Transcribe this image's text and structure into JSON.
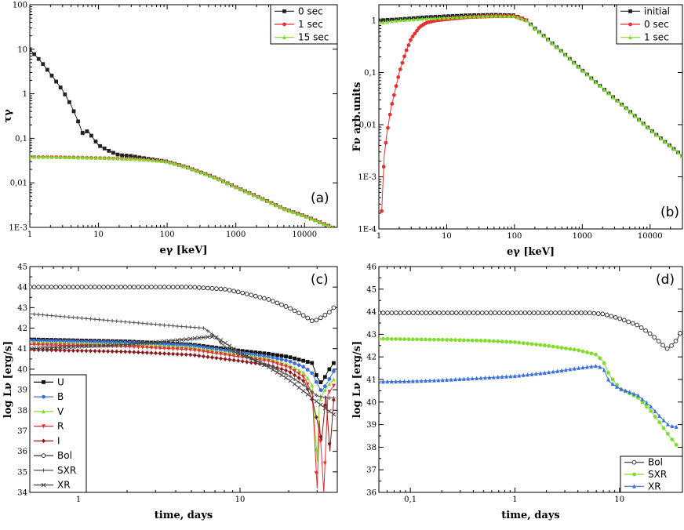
{
  "chart_data": [
    {
      "type": "line",
      "panel": "(a)",
      "xlabel": "eγ [keV]",
      "ylabel": "τγ",
      "xscale": "log",
      "yscale": "log",
      "xlim": [
        1,
        30000
      ],
      "ylim": [
        0.001,
        100
      ],
      "xticks": [
        "1",
        "10",
        "100",
        "1000",
        "10000"
      ],
      "yticks": [
        "1E-3",
        "0,01",
        "0,1",
        "1",
        "10",
        "100"
      ],
      "legend_position": "top-right",
      "series": [
        {
          "name": "0 sec",
          "color": "#222222",
          "marker": "square",
          "x": [
            1,
            1.5,
            2,
            3,
            4,
            5,
            6,
            7,
            8,
            10,
            15,
            20,
            30,
            50,
            100,
            200,
            500,
            1000,
            2000,
            5000,
            10000,
            30000
          ],
          "y": [
            10,
            5,
            2.8,
            1.2,
            0.55,
            0.25,
            0.12,
            0.15,
            0.11,
            0.07,
            0.05,
            0.042,
            0.04,
            0.035,
            0.03,
            0.022,
            0.013,
            0.008,
            0.005,
            0.0026,
            0.0018,
            0.0009
          ]
        },
        {
          "name": "1 sec",
          "color": "#e63030",
          "marker": "circle",
          "x": [
            1,
            2,
            5,
            10,
            20,
            50,
            100,
            200,
            500,
            1000,
            2000,
            5000,
            10000,
            30000
          ],
          "y": [
            0.038,
            0.038,
            0.037,
            0.036,
            0.035,
            0.033,
            0.03,
            0.022,
            0.013,
            0.008,
            0.005,
            0.0026,
            0.0018,
            0.0009
          ]
        },
        {
          "name": "15 sec",
          "color": "#80dd2a",
          "marker": "triangle",
          "x": [
            1,
            2,
            5,
            10,
            20,
            50,
            100,
            200,
            500,
            1000,
            2000,
            5000,
            10000,
            30000
          ],
          "y": [
            0.038,
            0.038,
            0.037,
            0.036,
            0.035,
            0.033,
            0.03,
            0.022,
            0.013,
            0.008,
            0.005,
            0.0026,
            0.0018,
            0.0009
          ]
        }
      ]
    },
    {
      "type": "line",
      "panel": "(b)",
      "xlabel": "eγ [keV]",
      "ylabel": "Fν arb.units",
      "xscale": "log",
      "yscale": "log",
      "xlim": [
        1,
        30000
      ],
      "ylim": [
        0.0001,
        2
      ],
      "xticks": [
        "1",
        "10",
        "100",
        "1000",
        "10000"
      ],
      "yticks": [
        "1E-4",
        "1E-3",
        "0,01",
        "0,1",
        "1"
      ],
      "legend_position": "top-right",
      "series": [
        {
          "name": "initial",
          "color": "#222222",
          "marker": "square",
          "x": [
            1,
            2,
            5,
            10,
            20,
            50,
            100,
            150,
            200,
            300,
            500,
            1000,
            2000,
            5000,
            10000,
            30000
          ],
          "y": [
            1.0,
            1.05,
            1.15,
            1.2,
            1.25,
            1.28,
            1.25,
            1.0,
            0.7,
            0.45,
            0.25,
            0.11,
            0.05,
            0.018,
            0.008,
            0.0025
          ]
        },
        {
          "name": "0 sec",
          "color": "#e63030",
          "marker": "circle",
          "x": [
            1.1,
            1.2,
            1.3,
            1.5,
            1.7,
            2,
            2.5,
            3,
            4,
            5,
            7,
            10,
            20,
            50,
            100,
            150
          ],
          "y": [
            0.00022,
            0.0025,
            0.006,
            0.02,
            0.04,
            0.1,
            0.25,
            0.45,
            0.75,
            0.9,
            1.0,
            1.05,
            1.15,
            1.2,
            1.2,
            1.0
          ]
        },
        {
          "name": "1 sec",
          "color": "#80dd2a",
          "marker": "triangle",
          "x": [
            1,
            2,
            5,
            10,
            20,
            50,
            100,
            150,
            200,
            300,
            500,
            1000,
            2000,
            5000,
            10000,
            30000
          ],
          "y": [
            0.9,
            1.0,
            1.08,
            1.12,
            1.18,
            1.22,
            1.2,
            1.0,
            0.7,
            0.45,
            0.25,
            0.11,
            0.05,
            0.018,
            0.008,
            0.0025
          ]
        }
      ]
    },
    {
      "type": "line",
      "panel": "(c)",
      "xlabel": "time, days",
      "ylabel": "log Lν [erg/s]",
      "xscale": "log",
      "yscale": "linear",
      "xlim": [
        0.5,
        40
      ],
      "ylim": [
        34,
        45
      ],
      "xticks": [
        "1",
        "10"
      ],
      "yticks": [
        "34",
        "35",
        "36",
        "37",
        "38",
        "39",
        "40",
        "41",
        "42",
        "43",
        "44",
        "45"
      ],
      "legend_position": "bottom-left",
      "series": [
        {
          "name": "U",
          "color": "#111111",
          "marker": "square",
          "x": [
            0.5,
            1,
            2,
            5,
            10,
            15,
            20,
            25,
            28,
            30,
            32,
            35,
            38
          ],
          "y": [
            41.45,
            41.4,
            41.35,
            41.2,
            40.9,
            40.75,
            40.6,
            40.4,
            40.3,
            39.6,
            39.3,
            39.9,
            40.3
          ]
        },
        {
          "name": "B",
          "color": "#3b6fe0",
          "marker": "circle",
          "x": [
            0.5,
            1,
            2,
            5,
            10,
            15,
            20,
            25,
            28,
            30,
            32,
            35,
            38
          ],
          "y": [
            41.4,
            41.35,
            41.3,
            41.15,
            40.8,
            40.6,
            40.4,
            40.1,
            39.8,
            39.3,
            38.9,
            39.4,
            39.9
          ]
        },
        {
          "name": "V",
          "color": "#80dd2a",
          "marker": "triangle",
          "x": [
            0.5,
            1,
            2,
            5,
            10,
            15,
            20,
            25,
            28,
            30,
            31,
            33,
            35,
            38
          ],
          "y": [
            41.3,
            41.25,
            41.2,
            41.05,
            40.7,
            40.5,
            40.2,
            39.8,
            39.2,
            35.5,
            38.4,
            38.9,
            39.2,
            39.5
          ]
        },
        {
          "name": "R",
          "color": "#e63030",
          "marker": "triangle-down",
          "x": [
            0.5,
            1,
            2,
            5,
            10,
            15,
            20,
            25,
            28,
            30,
            31,
            33,
            35,
            38
          ],
          "y": [
            41.2,
            41.15,
            41.1,
            40.95,
            40.6,
            40.4,
            40.1,
            39.6,
            38.8,
            34.2,
            37.5,
            34,
            38.8,
            39.2
          ]
        },
        {
          "name": "I",
          "color": "#8b1a1a",
          "marker": "diamond",
          "x": [
            0.5,
            1,
            2,
            5,
            10,
            15,
            20,
            25,
            28,
            30,
            32,
            34,
            36,
            38
          ],
          "y": [
            40.95,
            40.9,
            40.85,
            40.7,
            40.4,
            40.2,
            39.9,
            39.4,
            38.5,
            37.5,
            36.5,
            38.7,
            36.0,
            38.5
          ]
        },
        {
          "name": "Bol",
          "color": "#333333",
          "marker": "open-circle",
          "x": [
            0.5,
            1,
            2,
            5,
            8,
            10,
            15,
            20,
            25,
            28,
            30,
            33,
            36,
            38
          ],
          "y": [
            44.0,
            44.0,
            44.0,
            44.0,
            43.9,
            43.75,
            43.4,
            43.0,
            42.6,
            42.35,
            42.4,
            42.6,
            42.8,
            43.0
          ]
        },
        {
          "name": "SXR",
          "color": "#555555",
          "marker": "plus",
          "x": [
            0.5,
            1,
            2,
            4,
            6,
            7,
            8,
            10,
            15,
            20,
            25,
            30,
            35,
            38
          ],
          "y": [
            42.7,
            42.5,
            42.3,
            42.1,
            42.0,
            41.6,
            41.1,
            40.7,
            40.2,
            39.7,
            39.2,
            38.7,
            38.6,
            38.6
          ]
        },
        {
          "name": "XR",
          "color": "#444444",
          "marker": "x",
          "x": [
            0.5,
            1,
            2,
            4,
            6,
            7,
            8,
            10,
            15,
            20,
            25,
            30,
            35,
            38
          ],
          "y": [
            41.0,
            41.1,
            41.2,
            41.4,
            41.55,
            41.6,
            41.3,
            40.8,
            40.1,
            39.5,
            38.9,
            38.4,
            38.0,
            37.8
          ]
        }
      ]
    },
    {
      "type": "line",
      "panel": "(d)",
      "xlabel": "time, days",
      "ylabel": "log Lν [erg/s]",
      "xscale": "log",
      "yscale": "linear",
      "xlim": [
        0.05,
        40
      ],
      "ylim": [
        36,
        46
      ],
      "xticks": [
        "0,1",
        "1",
        "10"
      ],
      "yticks": [
        "36",
        "37",
        "38",
        "39",
        "40",
        "41",
        "42",
        "43",
        "44",
        "45",
        "46"
      ],
      "legend_position": "bottom-right",
      "series": [
        {
          "name": "Bol",
          "color": "#333333",
          "marker": "open-circle",
          "x": [
            0.05,
            0.1,
            0.2,
            0.5,
            1,
            2,
            5,
            7,
            10,
            15,
            20,
            25,
            28,
            30,
            33,
            36,
            38
          ],
          "y": [
            43.95,
            43.95,
            43.95,
            43.95,
            43.95,
            43.95,
            43.95,
            43.9,
            43.7,
            43.4,
            43.0,
            42.6,
            42.35,
            42.4,
            42.6,
            42.8,
            43.05
          ]
        },
        {
          "name": "SXR",
          "color": "#80dd2a",
          "marker": "circle",
          "x": [
            0.05,
            0.1,
            0.2,
            0.5,
            1,
            2,
            4,
            6,
            7,
            8,
            10,
            15,
            20,
            25,
            30,
            35
          ],
          "y": [
            42.8,
            42.78,
            42.76,
            42.72,
            42.65,
            42.5,
            42.3,
            42.1,
            41.8,
            41.2,
            40.6,
            40.2,
            39.6,
            39.0,
            38.5,
            38.1
          ]
        },
        {
          "name": "XR",
          "color": "#3b6fe0",
          "marker": "triangle",
          "x": [
            0.05,
            0.1,
            0.2,
            0.5,
            1,
            2,
            4,
            6,
            7,
            8,
            10,
            15,
            20,
            25,
            30,
            35
          ],
          "y": [
            40.9,
            40.92,
            40.97,
            41.07,
            41.15,
            41.3,
            41.5,
            41.6,
            41.5,
            40.9,
            40.6,
            40.3,
            39.8,
            39.3,
            38.95,
            38.9
          ]
        }
      ]
    }
  ]
}
